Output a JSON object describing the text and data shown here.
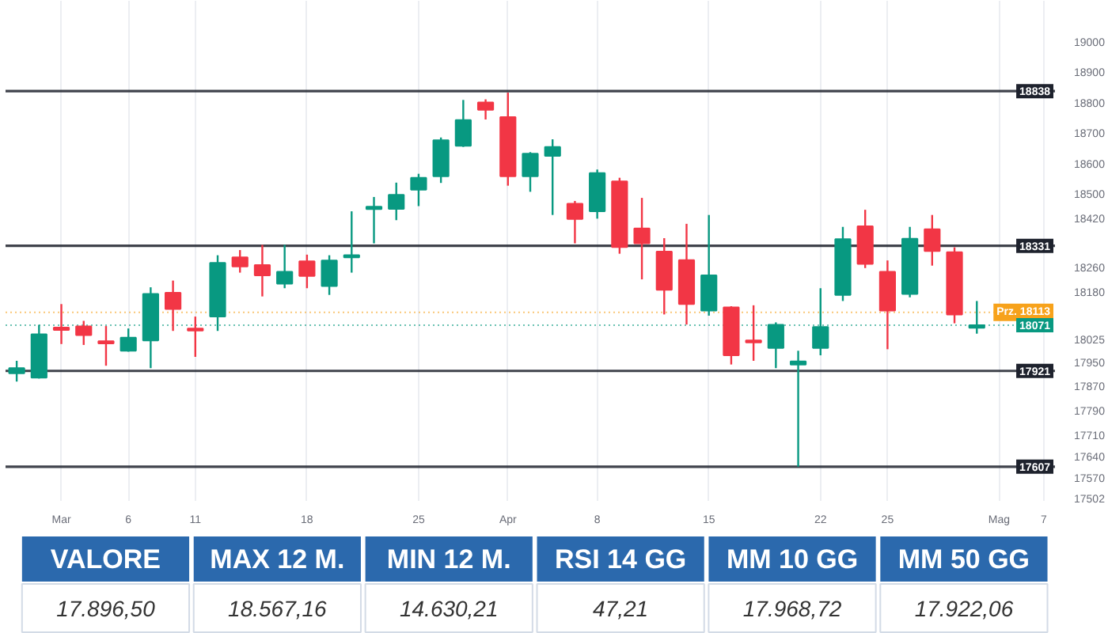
{
  "chart_data": [
    {
      "type": "candlestick",
      "categories": [
        null,
        null,
        "Mar",
        null,
        null,
        "6",
        null,
        null,
        "11",
        null,
        null,
        null,
        null,
        "18",
        null,
        null,
        null,
        null,
        "25",
        null,
        null,
        null,
        "Apr",
        null,
        null,
        null,
        "8",
        null,
        null,
        null,
        null,
        "15",
        null,
        null,
        null,
        null,
        "22",
        null,
        null,
        "25",
        null,
        null,
        null,
        null,
        "Mag",
        null,
        "7"
      ],
      "ohlc": [
        [
          17913,
          17954,
          17886,
          17930
        ],
        [
          17899,
          18072,
          17896,
          18041
        ],
        [
          18063,
          18140,
          18009,
          18055
        ],
        [
          18067,
          18085,
          18006,
          18038
        ],
        [
          18018,
          18068,
          17938,
          18011
        ],
        [
          17987,
          18060,
          17984,
          18030
        ],
        [
          18021,
          18195,
          17930,
          18173
        ],
        [
          18177,
          18217,
          18052,
          18124
        ],
        [
          18060,
          18099,
          17967,
          18053
        ],
        [
          18099,
          18300,
          18052,
          18275
        ],
        [
          18293,
          18317,
          18243,
          18263
        ],
        [
          18268,
          18334,
          18165,
          18234
        ],
        [
          18207,
          18334,
          18192,
          18246
        ],
        [
          18280,
          18302,
          18192,
          18232
        ],
        [
          18199,
          18300,
          18170,
          18283
        ],
        [
          18293,
          18444,
          18243,
          18300
        ],
        [
          18451,
          18491,
          18339,
          18459
        ],
        [
          18452,
          18538,
          18415,
          18498
        ],
        [
          18515,
          18567,
          18461,
          18554
        ],
        [
          18559,
          18686,
          18537,
          18677
        ],
        [
          18659,
          18809,
          18655,
          18743
        ],
        [
          18801,
          18811,
          18745,
          18777
        ],
        [
          18753,
          18833,
          18528,
          18559
        ],
        [
          18559,
          18638,
          18508,
          18633
        ],
        [
          18626,
          18680,
          18432,
          18655
        ],
        [
          18469,
          18478,
          18339,
          18419
        ],
        [
          18444,
          18581,
          18420,
          18569
        ],
        [
          18542,
          18554,
          18305,
          18327
        ],
        [
          18388,
          18488,
          18221,
          18339
        ],
        [
          18312,
          18356,
          18106,
          18187
        ],
        [
          18284,
          18403,
          18073,
          18140
        ],
        [
          18119,
          18432,
          18102,
          18234
        ],
        [
          18129,
          18133,
          17942,
          17972
        ],
        [
          18021,
          18136,
          17954,
          18014
        ],
        [
          17996,
          18080,
          17930,
          18072
        ],
        [
          17942,
          17987,
          17607,
          17952
        ],
        [
          17996,
          18192,
          17972,
          18065
        ],
        [
          18170,
          18393,
          18150,
          18353
        ],
        [
          18395,
          18449,
          18258,
          18272
        ],
        [
          18246,
          18283,
          17992,
          18119
        ],
        [
          18173,
          18393,
          18162,
          18354
        ],
        [
          18385,
          18432,
          18266,
          18314
        ],
        [
          18310,
          18326,
          18077,
          18106
        ],
        [
          18062,
          18150,
          18043,
          18071
        ],
        null,
        null,
        null
      ],
      "colors": [
        "#089981",
        "#089981",
        "#f23645",
        "#f23645",
        "#f23645",
        "#089981",
        "#089981",
        "#f23645",
        "#f23645",
        "#089981",
        "#f23645",
        "#f23645",
        "#089981",
        "#f23645",
        "#089981",
        "#089981",
        "#089981",
        "#089981",
        "#089981",
        "#089981",
        "#089981",
        "#f23645",
        "#f23645",
        "#089981",
        "#089981",
        "#f23645",
        "#089981",
        "#f23645",
        "#f23645",
        "#f23645",
        "#f23645",
        "#089981",
        "#f23645",
        "#f23645",
        "#089981",
        "#089981",
        "#089981",
        "#089981",
        "#f23645",
        "#f23645",
        "#089981",
        "#f23645",
        "#f23645",
        "#089981",
        null,
        null,
        null
      ],
      "ylim": [
        17495,
        19134
      ],
      "yticks": [
        19000,
        18900,
        18800,
        18700,
        18600,
        18500,
        18420,
        18260,
        18180,
        18025,
        17950,
        17870,
        17790,
        17710,
        17640,
        17570,
        17502
      ],
      "grid": "x",
      "ref_lines": [
        {
          "axis": "y",
          "value": 18838,
          "label": "18838",
          "color": "#1e222d"
        },
        {
          "axis": "y",
          "value": 18331,
          "label": "18331",
          "color": "#1e222d"
        },
        {
          "axis": "y",
          "value": 17921,
          "label": "17921",
          "color": "#1e222d"
        },
        {
          "axis": "y",
          "value": 17607,
          "label": "17607",
          "color": "#1e222d"
        },
        {
          "axis": "y",
          "value": 18113,
          "label": "Prz. 18113",
          "color": "#f7a21b",
          "line_style": "dotted"
        },
        {
          "axis": "y",
          "value": 18071,
          "label": "18071",
          "color": "#089981",
          "line_style": "dotted"
        }
      ]
    },
    {
      "type": "other",
      "categories": [
        "VALORE",
        "MAX 12 M.",
        "MIN 12 M.",
        "RSI 14 GG",
        "MM 10 GG",
        "MM 50 GG"
      ],
      "annotations": [
        "17.896,50",
        "18.567,16",
        "14.630,21",
        "47,21",
        "17.968,72",
        "17.922,06"
      ],
      "color": "#2b69ad"
    }
  ]
}
